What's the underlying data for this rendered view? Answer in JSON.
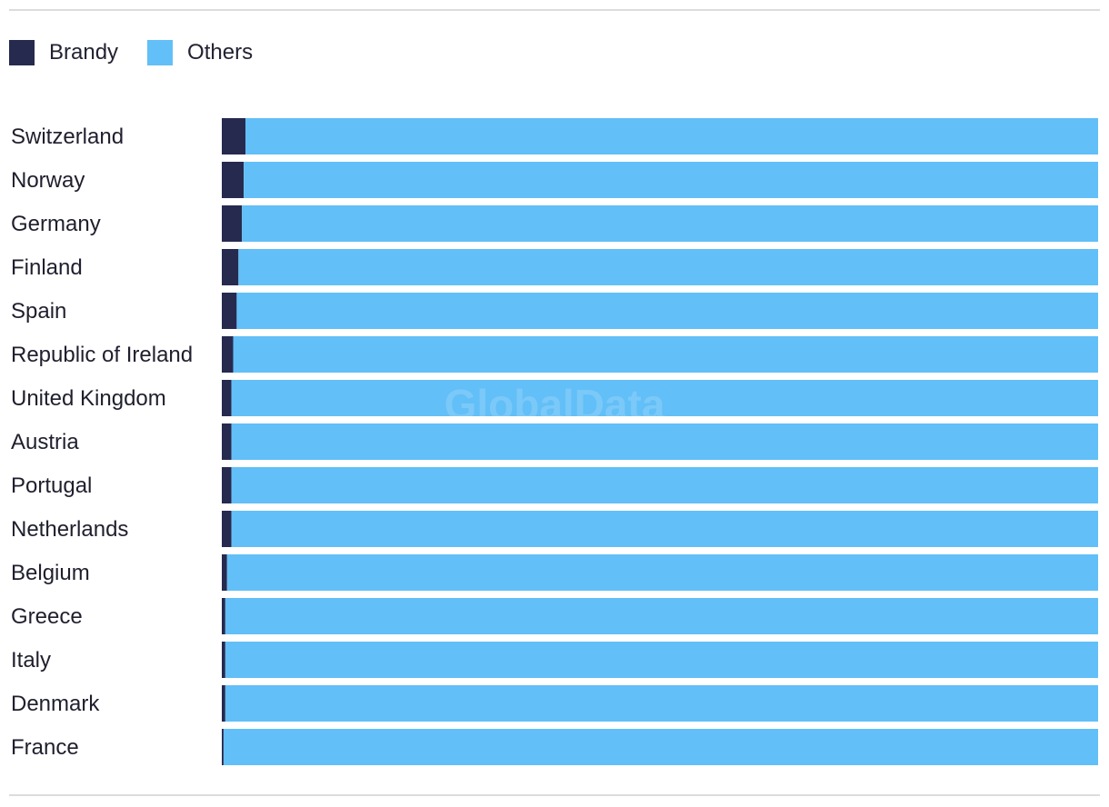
{
  "legend": {
    "items": [
      {
        "label": "Brandy",
        "color": "#262a4f"
      },
      {
        "label": "Others",
        "color": "#62bff7"
      }
    ]
  },
  "watermark": "GlobalData",
  "chart_data": {
    "type": "bar",
    "orientation": "horizontal",
    "stacked": true,
    "percent_stacked": true,
    "categories": [
      "Switzerland",
      "Norway",
      "Germany",
      "Finland",
      "Spain",
      "Republic of Ireland",
      "United Kingdom",
      "Austria",
      "Portugal",
      "Netherlands",
      "Belgium",
      "Greece",
      "Italy",
      "Denmark",
      "France"
    ],
    "series": [
      {
        "name": "Brandy",
        "color": "#262a4f",
        "values": [
          2.7,
          2.5,
          2.3,
          1.9,
          1.7,
          1.3,
          1.1,
          1.1,
          1.1,
          1.1,
          0.6,
          0.4,
          0.4,
          0.4,
          0.2
        ]
      },
      {
        "name": "Others",
        "color": "#62bff7",
        "values": [
          97.3,
          97.5,
          97.7,
          98.1,
          98.3,
          98.7,
          98.9,
          98.9,
          98.9,
          98.9,
          99.4,
          99.6,
          99.6,
          99.6,
          99.8
        ]
      }
    ],
    "xlim": [
      0,
      100
    ],
    "title": "",
    "xlabel": "",
    "ylabel": "",
    "grid": false,
    "legend_position": "top-left"
  }
}
